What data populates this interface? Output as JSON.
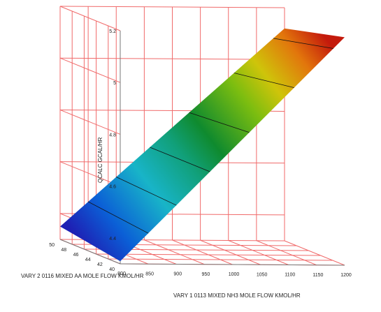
{
  "chart_data": {
    "type": "surface",
    "x_axis": {
      "label": "VARY 1 0113 MIXED NH3 MOLE FLOW KMOL/HR",
      "ticks": [
        "800",
        "850",
        "900",
        "950",
        "1000",
        "1050",
        "1100",
        "1150",
        "1200"
      ],
      "range": [
        800,
        1200
      ]
    },
    "y_axis": {
      "label": "VARY 2 0116 MIXED AA MOLE FLOW KMOL/HR",
      "ticks": [
        "40",
        "42",
        "44",
        "46",
        "48",
        "50"
      ],
      "range": [
        40,
        50
      ]
    },
    "z_axis": {
      "label": "QCALC GCAL/HR",
      "ticks": [
        "4.4",
        "4.6",
        "4.8",
        "5",
        "5.2"
      ],
      "range": [
        4.3,
        5.2
      ]
    },
    "corners": [
      {
        "x": 800,
        "y": 50,
        "z": 4.35
      },
      {
        "x": 800,
        "y": 40,
        "z": 4.31
      },
      {
        "x": 1200,
        "y": 50,
        "z": 5.12
      },
      {
        "x": 1200,
        "y": 40,
        "z": 5.18
      }
    ],
    "contour_levels": [
      4.4,
      4.6,
      4.8,
      5.0,
      5.2
    ],
    "colormap": [
      "#1f1fb0",
      "#0a6fd8",
      "#19b7c4",
      "#119a5a",
      "#0f8a2e",
      "#8cc40e",
      "#d2c30a",
      "#e67c0c",
      "#c81a0c"
    ],
    "grid": true,
    "grid_color": "#f06a6a"
  }
}
